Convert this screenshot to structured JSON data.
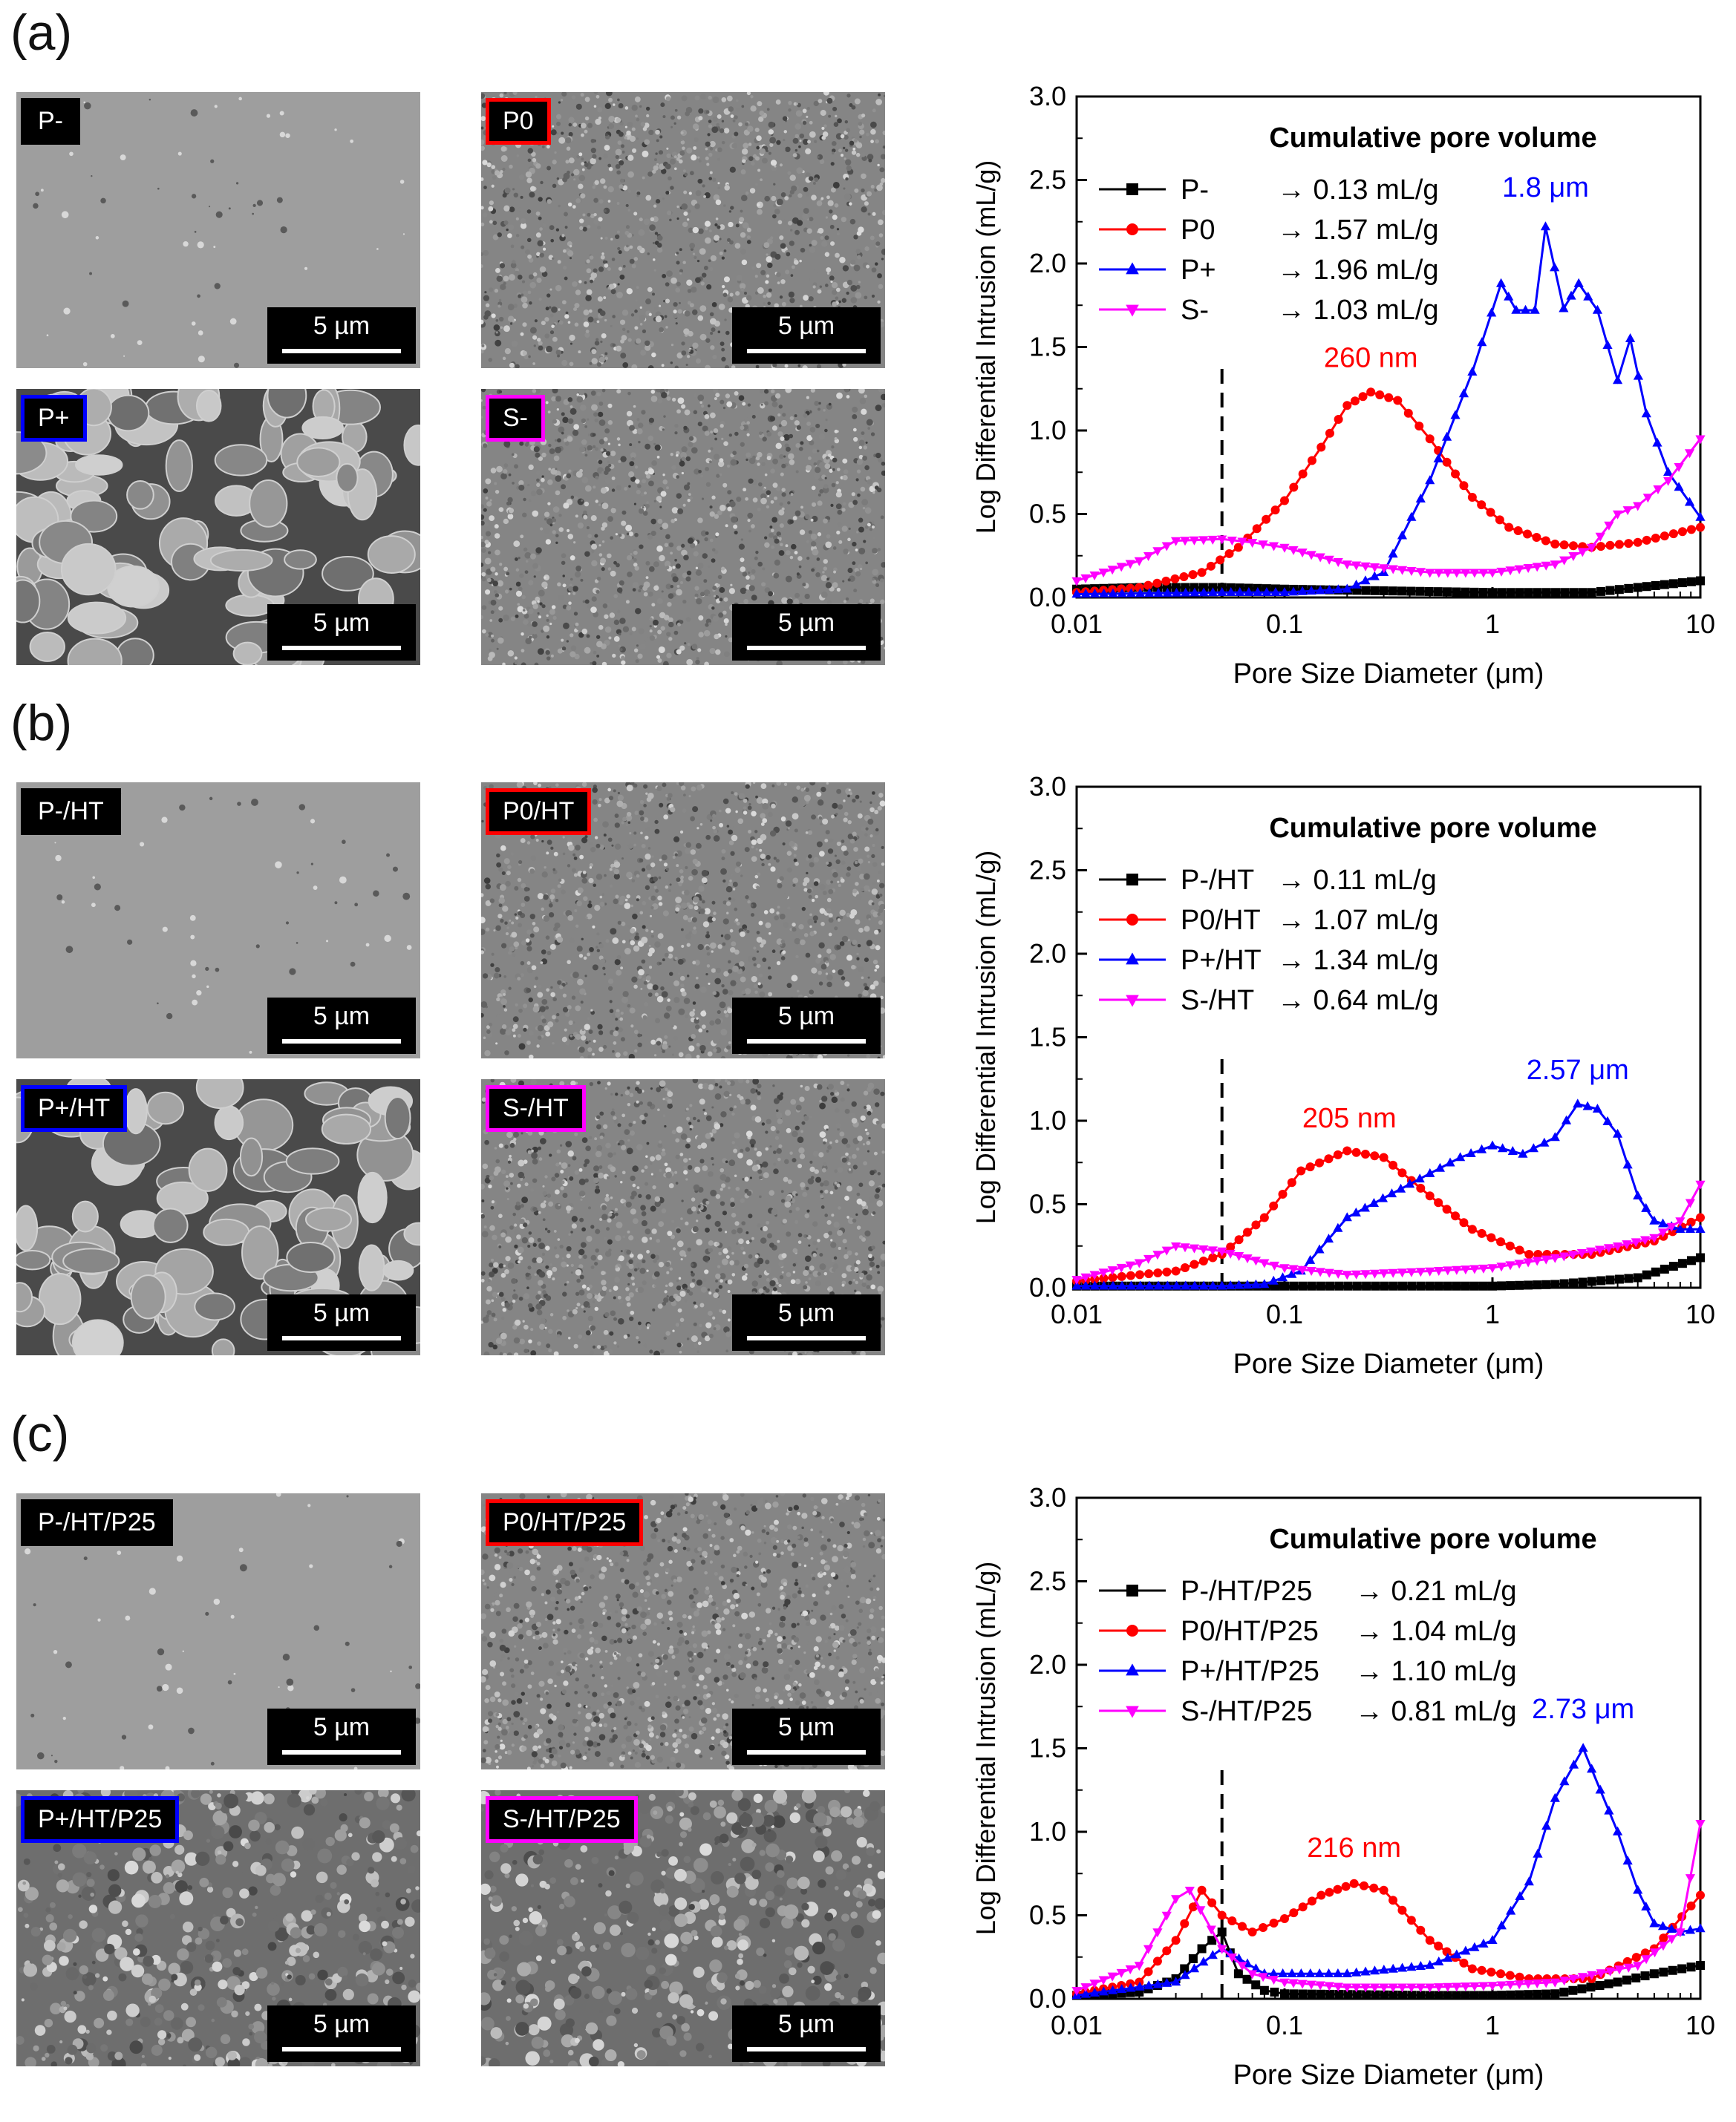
{
  "colors": {
    "P-": "#000000",
    "P0": "#ff0000",
    "P+": "#0000ff",
    "S-": "#ff00ff"
  },
  "panels": [
    {
      "letter": "(a)",
      "images": [
        {
          "label": "P-",
          "scale": "5 µm",
          "texture": "smooth",
          "border": "#000000"
        },
        {
          "label": "P0",
          "scale": "5 µm",
          "texture": "granular",
          "border": "#ff0000"
        },
        {
          "label": "P+",
          "scale": "5 µm",
          "texture": "coarse",
          "border": "#0000ff"
        },
        {
          "label": "S-",
          "scale": "5 µm",
          "texture": "granular",
          "border": "#ff00ff"
        }
      ]
    },
    {
      "letter": "(b)",
      "images": [
        {
          "label": "P-/HT",
          "scale": "5 µm",
          "texture": "smooth",
          "border": "#000000"
        },
        {
          "label": "P0/HT",
          "scale": "5 µm",
          "texture": "granular",
          "border": "#ff0000"
        },
        {
          "label": "P+/HT",
          "scale": "5 µm",
          "texture": "coarse",
          "border": "#0000ff"
        },
        {
          "label": "S-/HT",
          "scale": "5 µm",
          "texture": "granular",
          "border": "#ff00ff"
        }
      ]
    },
    {
      "letter": "(c)",
      "images": [
        {
          "label": "P-/HT/P25",
          "scale": "5 µm",
          "texture": "smooth",
          "border": "#000000"
        },
        {
          "label": "P0/HT/P25",
          "scale": "5 µm",
          "texture": "granular",
          "border": "#ff0000"
        },
        {
          "label": "P+/HT/P25",
          "scale": "5 µm",
          "texture": "rough",
          "border": "#0000ff"
        },
        {
          "label": "S-/HT/P25",
          "scale": "5 µm",
          "texture": "rough",
          "border": "#ff00ff"
        }
      ]
    }
  ],
  "chart_data": [
    {
      "type": "line",
      "xscale": "log",
      "xlim": [
        0.01,
        10
      ],
      "ylim": [
        0,
        3.0
      ],
      "xticks": [
        "0.01",
        "0.1",
        "1",
        "10"
      ],
      "yticks": [
        "0.0",
        "0.5",
        "1.0",
        "1.5",
        "2.0",
        "2.5",
        "3.0"
      ],
      "xlabel": "Pore Size Diameter (μm)",
      "ylabel": "Log Differential Intrusion (mL/g)",
      "legend_title": "Cumulative pore volume",
      "legend_position": "top",
      "dashed_line_x": 0.05,
      "series": [
        {
          "name": "P-",
          "volume": "→ 0.13 mL/g",
          "marker": "square",
          "color": "#000000",
          "x": [
            0.01,
            0.02,
            0.05,
            0.1,
            0.3,
            1,
            3,
            5,
            10
          ],
          "y": [
            0.05,
            0.06,
            0.06,
            0.05,
            0.04,
            0.03,
            0.03,
            0.06,
            0.1
          ]
        },
        {
          "name": "P0",
          "volume": "→ 1.57 mL/g",
          "marker": "circle",
          "color": "#ff0000",
          "x": [
            0.01,
            0.02,
            0.04,
            0.06,
            0.1,
            0.15,
            0.2,
            0.26,
            0.35,
            0.5,
            0.8,
            1.2,
            2,
            3,
            5,
            10
          ],
          "y": [
            0.03,
            0.06,
            0.15,
            0.3,
            0.58,
            0.9,
            1.15,
            1.23,
            1.18,
            0.95,
            0.6,
            0.42,
            0.32,
            0.3,
            0.33,
            0.42
          ]
        },
        {
          "name": "P+",
          "volume": "→ 1.96 mL/g",
          "marker": "triangle-up",
          "color": "#0000ff",
          "x": [
            0.01,
            0.05,
            0.1,
            0.2,
            0.3,
            0.5,
            0.8,
            1.1,
            1.3,
            1.6,
            1.8,
            2.2,
            2.6,
            3.2,
            4,
            4.6,
            5.5,
            7,
            10
          ],
          "y": [
            0.02,
            0.03,
            0.03,
            0.05,
            0.15,
            0.7,
            1.35,
            1.88,
            1.72,
            1.72,
            2.22,
            1.73,
            1.88,
            1.72,
            1.3,
            1.55,
            1.1,
            0.75,
            0.48
          ]
        },
        {
          "name": "S-",
          "volume": "→ 1.03 mL/g",
          "marker": "triangle-down",
          "color": "#ff00ff",
          "x": [
            0.01,
            0.02,
            0.03,
            0.05,
            0.07,
            0.1,
            0.2,
            0.5,
            1,
            2,
            3,
            4,
            5,
            7,
            10
          ],
          "y": [
            0.1,
            0.22,
            0.34,
            0.35,
            0.33,
            0.3,
            0.2,
            0.15,
            0.15,
            0.2,
            0.3,
            0.5,
            0.55,
            0.7,
            0.95
          ]
        }
      ],
      "annotations": [
        {
          "text": "260 nm",
          "x": 0.26,
          "y": 1.38,
          "color": "#ff0000"
        },
        {
          "text": "1.8 μm",
          "x": 1.8,
          "y": 2.4,
          "color": "#0000ff"
        }
      ]
    },
    {
      "type": "line",
      "xscale": "log",
      "xlim": [
        0.01,
        10
      ],
      "ylim": [
        0,
        3.0
      ],
      "xticks": [
        "0.01",
        "0.1",
        "1",
        "10"
      ],
      "yticks": [
        "0.0",
        "0.5",
        "1.0",
        "1.5",
        "2.0",
        "2.5",
        "3.0"
      ],
      "xlabel": "Pore Size Diameter (μm)",
      "ylabel": "Log Differential Intrusion (mL/g)",
      "legend_title": "Cumulative pore volume",
      "legend_position": "top",
      "dashed_line_x": 0.05,
      "series": [
        {
          "name": "P-/HT",
          "volume": "→ 0.11 mL/g",
          "marker": "square",
          "color": "#000000",
          "x": [
            0.01,
            0.05,
            0.1,
            0.5,
            1,
            2,
            5,
            10
          ],
          "y": [
            0.01,
            0.01,
            0.01,
            0.01,
            0.01,
            0.02,
            0.06,
            0.18
          ]
        },
        {
          "name": "P0/HT",
          "volume": "→ 1.07 mL/g",
          "marker": "circle",
          "color": "#ff0000",
          "x": [
            0.01,
            0.03,
            0.05,
            0.08,
            0.12,
            0.2,
            0.3,
            0.5,
            0.8,
            1.5,
            3,
            6,
            10
          ],
          "y": [
            0.04,
            0.1,
            0.2,
            0.42,
            0.7,
            0.82,
            0.78,
            0.55,
            0.35,
            0.2,
            0.2,
            0.28,
            0.42
          ]
        },
        {
          "name": "P+/HT",
          "volume": "→ 1.34 mL/g",
          "marker": "triangle-up",
          "color": "#0000ff",
          "x": [
            0.01,
            0.05,
            0.08,
            0.12,
            0.2,
            0.4,
            0.7,
            1,
            1.4,
            2,
            2.57,
            3.2,
            4,
            5,
            6,
            8,
            10
          ],
          "y": [
            0.01,
            0.01,
            0.02,
            0.1,
            0.42,
            0.62,
            0.78,
            0.85,
            0.8,
            0.9,
            1.1,
            1.07,
            0.92,
            0.55,
            0.4,
            0.35,
            0.35
          ]
        },
        {
          "name": "S-/HT",
          "volume": "→ 0.64 mL/g",
          "marker": "triangle-down",
          "color": "#ff00ff",
          "x": [
            0.01,
            0.02,
            0.03,
            0.05,
            0.08,
            0.1,
            0.2,
            0.5,
            1,
            2,
            4,
            6,
            8,
            10
          ],
          "y": [
            0.05,
            0.15,
            0.25,
            0.22,
            0.15,
            0.12,
            0.08,
            0.1,
            0.12,
            0.18,
            0.25,
            0.3,
            0.4,
            0.62
          ]
        }
      ],
      "annotations": [
        {
          "text": "205 nm",
          "x": 0.205,
          "y": 0.96,
          "color": "#ff0000"
        },
        {
          "text": "2.57 μm",
          "x": 2.57,
          "y": 1.25,
          "color": "#0000ff"
        }
      ]
    },
    {
      "type": "line",
      "xscale": "log",
      "xlim": [
        0.01,
        10
      ],
      "ylim": [
        0,
        3.0
      ],
      "xticks": [
        "0.01",
        "0.1",
        "1",
        "10"
      ],
      "yticks": [
        "0.0",
        "0.5",
        "1.0",
        "1.5",
        "2.0",
        "2.5",
        "3.0"
      ],
      "xlabel": "Pore Size Diameter (μm)",
      "ylabel": "Log Differential Intrusion (mL/g)",
      "legend_title": "Cumulative pore volume",
      "legend_position": "top",
      "dashed_line_x": 0.05,
      "series": [
        {
          "name": "P-/HT/P25",
          "volume": "→ 0.21 mL/g",
          "marker": "square",
          "color": "#000000",
          "x": [
            0.01,
            0.02,
            0.03,
            0.04,
            0.05,
            0.06,
            0.08,
            0.1,
            0.5,
            1,
            2,
            4,
            6,
            10
          ],
          "y": [
            0.02,
            0.04,
            0.12,
            0.3,
            0.4,
            0.15,
            0.05,
            0.03,
            0.02,
            0.02,
            0.03,
            0.1,
            0.15,
            0.2
          ]
        },
        {
          "name": "P0/HT/P25",
          "volume": "→ 1.04 mL/g",
          "marker": "circle",
          "color": "#ff0000",
          "x": [
            0.01,
            0.02,
            0.03,
            0.04,
            0.05,
            0.07,
            0.1,
            0.15,
            0.216,
            0.3,
            0.5,
            0.8,
            1.5,
            3,
            6,
            10
          ],
          "y": [
            0.03,
            0.1,
            0.35,
            0.65,
            0.5,
            0.4,
            0.48,
            0.62,
            0.69,
            0.65,
            0.35,
            0.18,
            0.12,
            0.12,
            0.3,
            0.62
          ]
        },
        {
          "name": "P+/HT/P25",
          "volume": "→ 1.10 mL/g",
          "marker": "triangle-up",
          "color": "#0000ff",
          "x": [
            0.01,
            0.03,
            0.05,
            0.08,
            0.2,
            0.5,
            1,
            1.5,
            2,
            2.73,
            3.3,
            4,
            5,
            6,
            8,
            10
          ],
          "y": [
            0.02,
            0.1,
            0.3,
            0.15,
            0.15,
            0.2,
            0.35,
            0.7,
            1.2,
            1.5,
            1.25,
            1.0,
            0.65,
            0.45,
            0.4,
            0.42
          ]
        },
        {
          "name": "S-/HT/P25",
          "volume": "→ 0.81 mL/g",
          "marker": "triangle-down",
          "color": "#ff00ff",
          "x": [
            0.01,
            0.02,
            0.03,
            0.035,
            0.05,
            0.07,
            0.1,
            0.2,
            0.5,
            1,
            2,
            5,
            8,
            10
          ],
          "y": [
            0.05,
            0.2,
            0.6,
            0.65,
            0.3,
            0.15,
            0.1,
            0.07,
            0.07,
            0.08,
            0.1,
            0.2,
            0.4,
            1.05
          ]
        }
      ],
      "annotations": [
        {
          "text": "216 nm",
          "x": 0.216,
          "y": 0.85,
          "color": "#ff0000"
        },
        {
          "text": "2.73 μm",
          "x": 2.73,
          "y": 1.68,
          "color": "#0000ff"
        }
      ]
    }
  ]
}
